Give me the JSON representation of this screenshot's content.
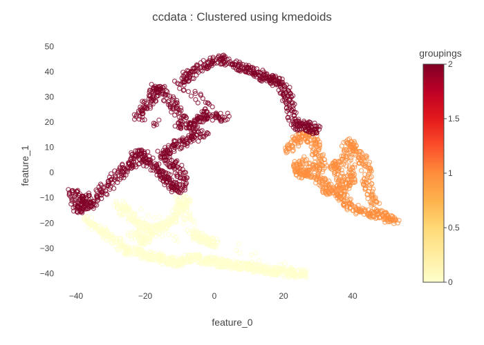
{
  "chart_data": {
    "type": "scatter",
    "title": "ccdata : Clustered using kmedoids",
    "xlabel": "feature_0",
    "ylabel": "feature_1",
    "xlim": [
      -46,
      56
    ],
    "ylim": [
      -47,
      52
    ],
    "x_ticks": [
      -40,
      -20,
      0,
      20,
      40
    ],
    "x_tick_labels": [
      "−40",
      "−20",
      "0",
      "20",
      "40"
    ],
    "y_ticks": [
      -40,
      -30,
      -20,
      -10,
      0,
      10,
      20,
      30,
      40,
      50
    ],
    "y_tick_labels": [
      "−40",
      "−30",
      "−20",
      "−10",
      "0",
      "10",
      "20",
      "30",
      "40",
      "50"
    ],
    "grid": false,
    "marker": "open-circle",
    "colorbar": {
      "title": "groupings",
      "range": [
        0,
        2
      ],
      "ticks": [
        0,
        0.5,
        1,
        1.5,
        2
      ],
      "tick_labels": [
        "0",
        "0.5",
        "1",
        "1.5",
        "2"
      ],
      "colorscale": [
        "#ffffcc",
        "#ffeda0",
        "#fed976",
        "#feb24c",
        "#fd8d3c",
        "#fc4e2a",
        "#e31a1c",
        "#bd0026",
        "#800026"
      ]
    },
    "clusters": [
      {
        "group": 2,
        "color": "#800026",
        "approx_points": [
          [
            -41,
            -7
          ],
          [
            -40,
            -12
          ],
          [
            -39,
            -16
          ],
          [
            -38,
            -9
          ],
          [
            -37,
            -12
          ],
          [
            -36,
            -14
          ],
          [
            -33,
            -8
          ],
          [
            -30,
            -4
          ],
          [
            -27,
            0
          ],
          [
            -25,
            2
          ],
          [
            -23,
            5
          ],
          [
            -22,
            8
          ],
          [
            -20,
            6
          ],
          [
            -18,
            3
          ],
          [
            -16,
            0
          ],
          [
            -14,
            -2
          ],
          [
            -12,
            -5
          ],
          [
            -10,
            -7
          ],
          [
            -9,
            -3
          ],
          [
            -11,
            2
          ],
          [
            -13,
            5
          ],
          [
            -15,
            8
          ],
          [
            -12,
            10
          ],
          [
            -9,
            12
          ],
          [
            -6,
            14
          ],
          [
            -3,
            16
          ],
          [
            -22,
            22
          ],
          [
            -20,
            26
          ],
          [
            -18,
            30
          ],
          [
            -17,
            34
          ],
          [
            -15,
            32
          ],
          [
            -12,
            27
          ],
          [
            -10,
            22
          ],
          [
            -8,
            18
          ],
          [
            -5,
            20
          ],
          [
            -3,
            23
          ],
          [
            0,
            22
          ],
          [
            3,
            22
          ],
          [
            -10,
            35
          ],
          [
            -8,
            38
          ],
          [
            -5,
            41
          ],
          [
            -2,
            43
          ],
          [
            1,
            45
          ],
          [
            4,
            44
          ],
          [
            7,
            42
          ],
          [
            10,
            41
          ],
          [
            12,
            40
          ],
          [
            14,
            38
          ],
          [
            16,
            37
          ],
          [
            18,
            36
          ],
          [
            20,
            34
          ],
          [
            21,
            30
          ],
          [
            22,
            26
          ],
          [
            23,
            20
          ],
          [
            25,
            18
          ],
          [
            27,
            19
          ],
          [
            29,
            17
          ]
        ]
      },
      {
        "group": 1,
        "color": "#fd8d3c",
        "approx_points": [
          [
            21,
            8
          ],
          [
            23,
            12
          ],
          [
            25,
            14
          ],
          [
            27,
            15
          ],
          [
            29,
            12
          ],
          [
            30,
            7
          ],
          [
            31,
            3
          ],
          [
            28,
            0
          ],
          [
            25,
            -1
          ],
          [
            24,
            2
          ],
          [
            26,
            5
          ],
          [
            29,
            -2
          ],
          [
            32,
            -4
          ],
          [
            33,
            -7
          ],
          [
            35,
            -8
          ],
          [
            37,
            -10
          ],
          [
            39,
            -13
          ],
          [
            42,
            -15
          ],
          [
            45,
            -16
          ],
          [
            48,
            -17
          ],
          [
            50,
            -18
          ],
          [
            52,
            -19
          ],
          [
            46,
            -12
          ],
          [
            44,
            -5
          ],
          [
            44,
            0
          ],
          [
            43,
            5
          ],
          [
            41,
            9
          ],
          [
            39,
            12
          ],
          [
            38,
            7
          ],
          [
            40,
            0
          ],
          [
            39,
            -4
          ],
          [
            37,
            -6
          ],
          [
            36,
            -2
          ],
          [
            35,
            3
          ]
        ]
      },
      {
        "group": 0,
        "color": "#ffffcc",
        "approx_points": [
          [
            -37,
            -18
          ],
          [
            -35,
            -21
          ],
          [
            -32,
            -24
          ],
          [
            -29,
            -26
          ],
          [
            -27,
            -29
          ],
          [
            -25,
            -31
          ],
          [
            -22,
            -31
          ],
          [
            -20,
            -33
          ],
          [
            -18,
            -33
          ],
          [
            -16,
            -34
          ],
          [
            -14,
            -35
          ],
          [
            -12,
            -35
          ],
          [
            -10,
            -36
          ],
          [
            -8,
            -34
          ],
          [
            -6,
            -34
          ],
          [
            -4,
            -34
          ],
          [
            -2,
            -35
          ],
          [
            0,
            -35
          ],
          [
            2,
            -36
          ],
          [
            4,
            -36
          ],
          [
            6,
            -37
          ],
          [
            8,
            -37
          ],
          [
            10,
            -37
          ],
          [
            12,
            -38
          ],
          [
            14,
            -38
          ],
          [
            16,
            -39
          ],
          [
            18,
            -39
          ],
          [
            20,
            -39
          ],
          [
            22,
            -40
          ],
          [
            24,
            -40
          ],
          [
            26,
            -40
          ],
          [
            -28,
            -12
          ],
          [
            -26,
            -15
          ],
          [
            -24,
            -18
          ],
          [
            -22,
            -20
          ],
          [
            -20,
            -22
          ],
          [
            -18,
            -24
          ],
          [
            -16,
            -22
          ],
          [
            -14,
            -20
          ],
          [
            -12,
            -18
          ],
          [
            -10,
            -14
          ],
          [
            -8,
            -12
          ],
          [
            -10,
            -10
          ],
          [
            -6,
            -24
          ],
          [
            -4,
            -26
          ],
          [
            -2,
            -27
          ],
          [
            0,
            -28
          ],
          [
            -24,
            -24
          ],
          [
            -20,
            -27
          ]
        ]
      }
    ]
  }
}
